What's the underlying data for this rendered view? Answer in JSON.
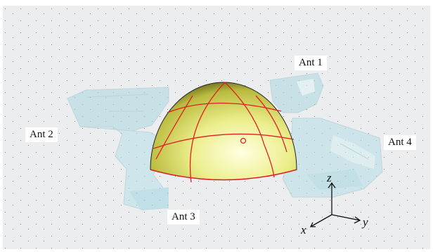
{
  "antennas": [
    {
      "id": "ant1",
      "label": "Ant 1"
    },
    {
      "id": "ant2",
      "label": "Ant 2"
    },
    {
      "id": "ant3",
      "label": "Ant 3"
    },
    {
      "id": "ant4",
      "label": "Ant 4"
    }
  ],
  "axes": {
    "x": "x",
    "y": "y",
    "z": "z"
  },
  "colors": {
    "background": "#ecedee",
    "radome_fill": "#e6e87a",
    "radome_edge": "#e02020",
    "antenna_fill": "#b7e0e8"
  }
}
